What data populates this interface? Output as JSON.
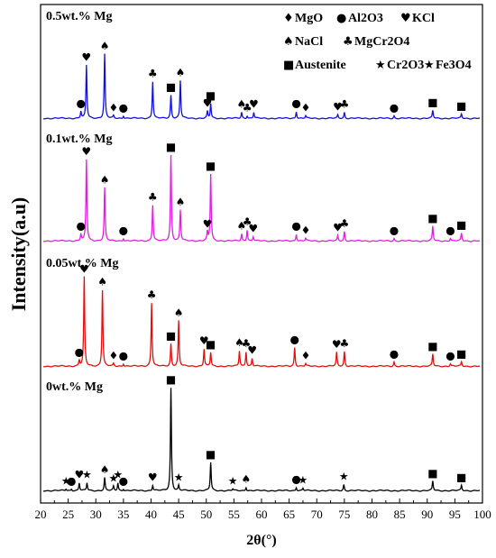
{
  "chart_data": {
    "type": "line",
    "xlabel": "2θ(°)",
    "ylabel": "Intensity(a.u)",
    "xlim": [
      20,
      100
    ],
    "x_ticks": [
      20,
      25,
      30,
      35,
      40,
      45,
      50,
      55,
      60,
      65,
      70,
      75,
      80,
      85,
      90,
      95,
      100
    ],
    "grid": false,
    "legend": {
      "placement": "top-right",
      "rows": [
        [
          {
            "symbol": "♦",
            "text": "MgO"
          },
          {
            "symbol": "●",
            "text": "Al2O3"
          },
          {
            "symbol": "♥",
            "text": "KCl"
          }
        ],
        [
          {
            "symbol": "♠",
            "text": "NaCl"
          },
          {
            "symbol": "♣",
            "text": "MgCr2O4"
          }
        ],
        [
          {
            "symbol": "■",
            "text": "Austenite"
          },
          {
            "symbol": "★",
            "text": "Cr2O3"
          },
          {
            "symbol": "★",
            "text": "Fe3O4"
          }
        ]
      ]
    },
    "series": [
      {
        "name": "0.5wt.% Mg",
        "color": "#1010e0",
        "peaks": [
          [
            27.3,
            8,
            "●"
          ],
          [
            28.3,
            62,
            "♥"
          ],
          [
            31.6,
            75,
            "♠"
          ],
          [
            33.2,
            3,
            "♦"
          ],
          [
            35.0,
            3,
            "●"
          ],
          [
            40.3,
            43,
            "♣"
          ],
          [
            43.6,
            27,
            "■"
          ],
          [
            45.3,
            44,
            "♠"
          ],
          [
            50.2,
            8,
            "♥"
          ],
          [
            50.8,
            17,
            "■"
          ],
          [
            56.4,
            7,
            "♠"
          ],
          [
            57.4,
            3,
            "♣"
          ],
          [
            58.6,
            7,
            "♥"
          ],
          [
            66.3,
            8,
            "●"
          ],
          [
            68.0,
            3,
            "♦"
          ],
          [
            73.8,
            4,
            "♥"
          ],
          [
            75.0,
            7,
            "♣"
          ],
          [
            84.0,
            3,
            "●"
          ],
          [
            91.0,
            9,
            "■"
          ],
          [
            96.2,
            5,
            "■"
          ]
        ]
      },
      {
        "name": "0.1wt.% Mg",
        "color": "#e020e0",
        "peaks": [
          [
            27.3,
            8,
            "●"
          ],
          [
            28.3,
            95,
            "♥"
          ],
          [
            31.6,
            62,
            "♠"
          ],
          [
            35.0,
            3,
            "●"
          ],
          [
            40.3,
            42,
            "♣"
          ],
          [
            43.6,
            100,
            "■"
          ],
          [
            45.3,
            36,
            "♠"
          ],
          [
            50.2,
            10,
            "♥"
          ],
          [
            50.8,
            78,
            "■"
          ],
          [
            56.4,
            8,
            "♠"
          ],
          [
            57.4,
            13,
            "♣"
          ],
          [
            58.5,
            5,
            "♥"
          ],
          [
            66.3,
            8,
            "●"
          ],
          [
            68.0,
            3,
            "♦"
          ],
          [
            73.8,
            6,
            "♥"
          ],
          [
            75.0,
            11,
            "♣"
          ],
          [
            84.0,
            3,
            "●"
          ],
          [
            91.0,
            17,
            "■"
          ],
          [
            94.2,
            3,
            "●"
          ],
          [
            96.2,
            9,
            "■"
          ]
        ]
      },
      {
        "name": "0.05wt.% Mg",
        "color": "#e01010",
        "peaks": [
          [
            27.0,
            7,
            "●"
          ],
          [
            27.9,
            104,
            "♥"
          ],
          [
            31.2,
            89,
            "♠"
          ],
          [
            33.2,
            3,
            "♦"
          ],
          [
            35.0,
            3,
            "●"
          ],
          [
            40.1,
            74,
            "♣"
          ],
          [
            43.6,
            26,
            "■"
          ],
          [
            45.0,
            53,
            "♠"
          ],
          [
            49.6,
            20,
            "♥"
          ],
          [
            50.8,
            16,
            "■"
          ],
          [
            56.0,
            18,
            "♠"
          ],
          [
            57.2,
            17,
            "♣"
          ],
          [
            58.3,
            9,
            "♥"
          ],
          [
            66.0,
            22,
            "●"
          ],
          [
            68.0,
            3,
            "♦"
          ],
          [
            73.6,
            16,
            "♥"
          ],
          [
            75.0,
            17,
            "♣"
          ],
          [
            84.0,
            5,
            "●"
          ],
          [
            91.0,
            14,
            "■"
          ],
          [
            94.2,
            3,
            "●"
          ],
          [
            96.2,
            5,
            "■"
          ]
        ]
      },
      {
        "name": "0wt.% Mg",
        "color": "#000000",
        "peaks": [
          [
            24.6,
            2,
            "★"
          ],
          [
            25.6,
            2,
            "●"
          ],
          [
            27.0,
            9,
            "♥"
          ],
          [
            28.4,
            9,
            "★"
          ],
          [
            31.6,
            15,
            "♠"
          ],
          [
            33.2,
            5,
            "★"
          ],
          [
            34.0,
            9,
            "★"
          ],
          [
            35.0,
            2,
            "●"
          ],
          [
            40.3,
            6,
            "♥"
          ],
          [
            43.6,
            120,
            "■"
          ],
          [
            45.0,
            6,
            "★"
          ],
          [
            50.8,
            33,
            "■"
          ],
          [
            54.8,
            2,
            "★"
          ],
          [
            57.2,
            4,
            "♠"
          ],
          [
            66.3,
            4,
            "●"
          ],
          [
            67.5,
            3,
            "★"
          ],
          [
            74.9,
            7,
            "★"
          ],
          [
            91.0,
            11,
            "■"
          ],
          [
            96.2,
            6,
            "■"
          ]
        ]
      }
    ]
  }
}
